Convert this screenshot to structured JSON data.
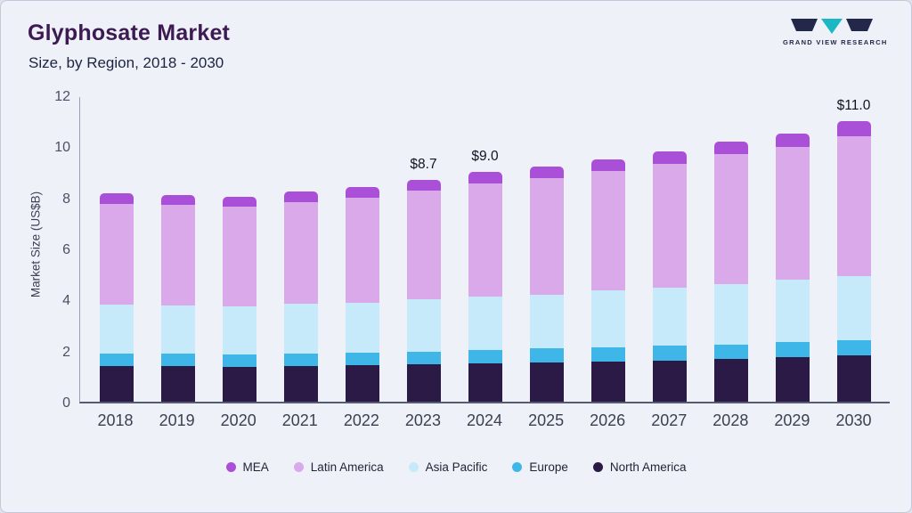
{
  "header": {
    "title": "Glyphosate Market",
    "subtitle": "Size, by Region, 2018 - 2030",
    "logo_text": "GRAND VIEW RESEARCH"
  },
  "colors": {
    "accent_purple": "#a94fd8",
    "logo_navy": "#23284a",
    "logo_teal": "#19b8c4"
  },
  "chart_data": {
    "type": "bar",
    "stacked": true,
    "title": "Glyphosate Market Size, by Region, 2018 - 2030",
    "xlabel": "",
    "ylabel": "Market Size (US$B)",
    "ylim": [
      0,
      12
    ],
    "yticks": [
      0,
      2,
      4,
      6,
      8,
      10,
      12
    ],
    "grid": false,
    "legend_position": "bottom",
    "categories": [
      "2018",
      "2019",
      "2020",
      "2021",
      "2022",
      "2023",
      "2024",
      "2025",
      "2026",
      "2027",
      "2028",
      "2029",
      "2030"
    ],
    "series": [
      {
        "name": "North America",
        "color": "#2a1a45",
        "values": [
          1.4,
          1.38,
          1.37,
          1.4,
          1.42,
          1.45,
          1.5,
          1.53,
          1.58,
          1.62,
          1.67,
          1.73,
          1.8
        ]
      },
      {
        "name": "Europe",
        "color": "#3eb6e8",
        "values": [
          0.5,
          0.5,
          0.48,
          0.5,
          0.51,
          0.52,
          0.53,
          0.55,
          0.55,
          0.57,
          0.58,
          0.6,
          0.6
        ]
      },
      {
        "name": "Asia Pacific",
        "color": "#c7eafa",
        "values": [
          1.9,
          1.9,
          1.88,
          1.93,
          1.96,
          2.03,
          2.07,
          2.12,
          2.22,
          2.29,
          2.37,
          2.44,
          2.52
        ]
      },
      {
        "name": "Latin America",
        "color": "#d9a9ea",
        "values": [
          3.95,
          3.92,
          3.9,
          4.0,
          4.09,
          4.27,
          4.44,
          4.55,
          4.67,
          4.83,
          5.07,
          5.2,
          5.48
        ]
      },
      {
        "name": "MEA",
        "color": "#a94fd8",
        "values": [
          0.4,
          0.4,
          0.4,
          0.42,
          0.42,
          0.43,
          0.46,
          0.45,
          0.48,
          0.49,
          0.51,
          0.53,
          0.6
        ]
      }
    ],
    "totals": [
      8.15,
      8.1,
      8.03,
      8.25,
      8.4,
      8.7,
      9.0,
      9.2,
      9.5,
      9.8,
      10.2,
      10.5,
      11.0
    ],
    "annotations": [
      {
        "category": "2023",
        "label": "$8.7"
      },
      {
        "category": "2024",
        "label": "$9.0"
      },
      {
        "category": "2030",
        "label": "$11.0"
      }
    ],
    "legend": [
      "MEA",
      "Latin America",
      "Asia Pacific",
      "Europe",
      "North America"
    ]
  }
}
